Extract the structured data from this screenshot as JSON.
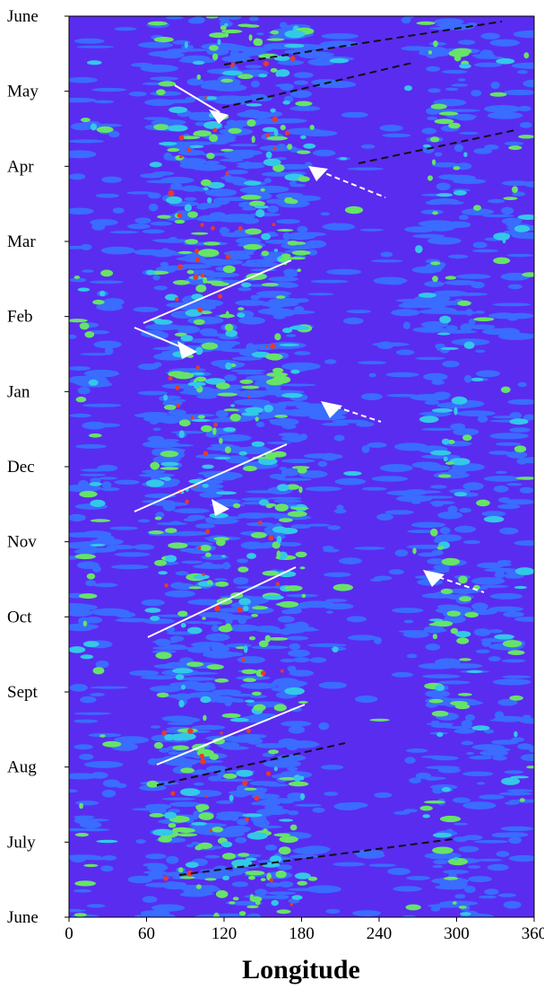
{
  "chart_data": {
    "type": "heatmap",
    "x_label": "Longitude",
    "xlim": [
      0,
      360
    ],
    "xticks": [
      0,
      60,
      120,
      180,
      240,
      300,
      360
    ],
    "y_categories": [
      "June",
      "July",
      "Aug",
      "Sept",
      "Oct",
      "Nov",
      "Dec",
      "Jan",
      "Feb",
      "Mar",
      "Apr",
      "May",
      "June"
    ]
  }
}
